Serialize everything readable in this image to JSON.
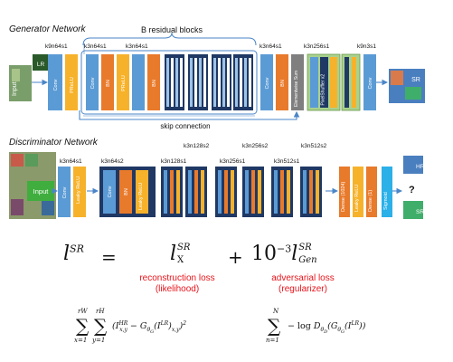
{
  "generator": {
    "title": "Generator Network",
    "residual_label": "B residual blocks",
    "skip_label": "skip connection",
    "input_label": "Input",
    "input_thumb_label": "LR",
    "output_thumb_label": "SR",
    "blocks": {
      "conv": "Conv",
      "prelu": "PReLU",
      "bn": "BN",
      "sum": "Elementwise Sum",
      "pixel_shuffler": "PixelShuffler x2"
    },
    "kernel_labels": [
      "k9n64s1",
      "k3n64s1",
      "k3n64s1",
      "k3n64s1",
      "k3n256s1",
      "k9n3s1"
    ]
  },
  "discriminator": {
    "title": "Discriminator Network",
    "input_label": "Input",
    "output_labels": {
      "hr": "HR",
      "sr": "SR",
      "question": "?"
    },
    "blocks": {
      "conv": "Conv",
      "leaky_relu": "Leaky ReLU",
      "bn": "BN",
      "dense1024": "Dense (1024)",
      "dense1": "Dense (1)",
      "sigmoid": "Sigmoid"
    },
    "kernel_labels": [
      "k3n64s1",
      "k3n64s2",
      "k3n128s1",
      "k3n128s2",
      "k3n256s1",
      "k3n256s2",
      "k3n512s1",
      "k3n512s2"
    ]
  },
  "loss": {
    "lhs": "l",
    "lhs_sup": "SR",
    "equals": "=",
    "content_sub": "X",
    "content_sup": "SR",
    "plus": "+",
    "factor": "10",
    "factor_exp": "−3",
    "adv_sub": "Gen",
    "adv_sup": "SR",
    "reconstruction_caption": "reconstruction loss",
    "reconstruction_sub": "(likelihood)",
    "adversarial_caption": "adversarial loss",
    "adversarial_sub": "(regularizer)"
  },
  "formulas": {
    "content": "∑x=1..rW ∑y=1..rH (I^HR_x,y − G_θG(I^LR)_x,y)²",
    "adversarial": "∑n=1..N −log D_θD(G_θG(I^LR))"
  }
}
